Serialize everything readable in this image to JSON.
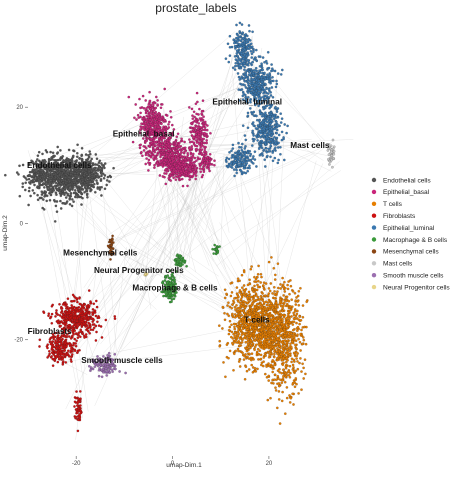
{
  "chart_data": {
    "type": "scatter",
    "title": "prostate_labels",
    "xlabel": "umap-Dim.1",
    "ylabel": "umap-Dim.2",
    "xlim": [
      -30,
      36
    ],
    "ylim": [
      -40,
      35
    ],
    "x_ticks": [
      -20,
      0,
      20
    ],
    "y_ticks": [
      -20,
      0,
      20
    ],
    "grid": false,
    "legend_position": "right",
    "series": [
      {
        "name": "Endothelial cells",
        "color": "#555555",
        "label": "Endothelial cells",
        "label_at": [
          -23.5,
          9.5
        ],
        "clusters": [
          {
            "cx": -22.5,
            "cy": 8,
            "rx": 6.5,
            "ry": 3.8,
            "n": 900
          },
          {
            "cx": -18,
            "cy": 8.5,
            "rx": 3.5,
            "ry": 2.5,
            "n": 250
          },
          {
            "cx": -27.5,
            "cy": 8.5,
            "rx": 1.8,
            "ry": 2,
            "n": 120
          }
        ]
      },
      {
        "name": "Epithelial_basal",
        "color": "#c9257a",
        "label": "Epithelial_basal",
        "label_at": [
          -6,
          15
        ],
        "clusters": [
          {
            "cx": -4,
            "cy": 17,
            "rx": 3,
            "ry": 4.5,
            "n": 350
          },
          {
            "cx": -1,
            "cy": 12,
            "rx": 4,
            "ry": 3.5,
            "n": 400
          },
          {
            "cx": 2,
            "cy": 9.5,
            "rx": 3.5,
            "ry": 2,
            "n": 250
          },
          {
            "cx": 5.5,
            "cy": 15,
            "rx": 2,
            "ry": 4.5,
            "n": 200
          },
          {
            "cx": 7,
            "cy": 10.5,
            "rx": 1.5,
            "ry": 1.5,
            "n": 60
          }
        ]
      },
      {
        "name": "T cells",
        "color": "#e67e00",
        "label": "T cells",
        "label_at": [
          17.5,
          -17
        ],
        "clusters": [
          {
            "cx": 16,
            "cy": -17,
            "rx": 4.5,
            "ry": 7,
            "n": 700
          },
          {
            "cx": 23,
            "cy": -19.5,
            "rx": 4,
            "ry": 9,
            "n": 650
          },
          {
            "cx": 19.5,
            "cy": -18,
            "rx": 3,
            "ry": 5,
            "n": 250
          }
        ]
      },
      {
        "name": "Fibroblasts",
        "color": "#cc1111",
        "label": "Fibroblasts",
        "label_at": [
          -25.5,
          -19
        ],
        "clusters": [
          {
            "cx": -20,
            "cy": -16.5,
            "rx": 4.5,
            "ry": 3,
            "n": 450
          },
          {
            "cx": -23,
            "cy": -21.5,
            "rx": 3,
            "ry": 2.5,
            "n": 200
          },
          {
            "cx": -19.5,
            "cy": -32,
            "rx": 0.8,
            "ry": 2.5,
            "n": 60
          }
        ]
      },
      {
        "name": "Epithelial_luminal",
        "color": "#3a78b0",
        "label": "Epithelial_luminal",
        "label_at": [
          15.5,
          20.5
        ],
        "clusters": [
          {
            "cx": 14.5,
            "cy": 30,
            "rx": 2.2,
            "ry": 3.5,
            "n": 200
          },
          {
            "cx": 17.5,
            "cy": 24,
            "rx": 3.2,
            "ry": 4,
            "n": 350
          },
          {
            "cx": 19.5,
            "cy": 16,
            "rx": 3.2,
            "ry": 4.5,
            "n": 350
          },
          {
            "cx": 14,
            "cy": 11,
            "rx": 2.5,
            "ry": 2.2,
            "n": 150
          }
        ]
      },
      {
        "name": "Macrophage & B cells",
        "color": "#3a9a3a",
        "label": "Macrophage & B cells",
        "label_at": [
          0.5,
          -11.5
        ],
        "clusters": [
          {
            "cx": -0.5,
            "cy": -11,
            "rx": 1.3,
            "ry": 2.3,
            "n": 150
          },
          {
            "cx": 1.5,
            "cy": -6.5,
            "rx": 1.2,
            "ry": 1,
            "n": 50
          },
          {
            "cx": 9.2,
            "cy": -4.5,
            "rx": 0.6,
            "ry": 0.8,
            "n": 25
          }
        ]
      },
      {
        "name": "Mesenchymal cells",
        "color": "#8b4513",
        "label": "Mesenchymal cells",
        "label_at": [
          -15,
          -5.5
        ],
        "clusters": [
          {
            "cx": -12.8,
            "cy": -4,
            "rx": 0.6,
            "ry": 1.8,
            "n": 40
          }
        ]
      },
      {
        "name": "Mast cells",
        "color": "#c8c8c8",
        "label": "Mast cells",
        "label_at": [
          28.5,
          13
        ],
        "clusters": [
          {
            "cx": 33,
            "cy": 12,
            "rx": 0.7,
            "ry": 2,
            "n": 40
          }
        ]
      },
      {
        "name": "Smooth muscle cells",
        "color": "#9b6fb0",
        "label": "Smooth muscle cells",
        "label_at": [
          -10.5,
          -24
        ],
        "clusters": [
          {
            "cx": -14,
            "cy": -24.5,
            "rx": 2.8,
            "ry": 1.8,
            "n": 120
          }
        ]
      },
      {
        "name": "Neural Progenitor cells",
        "color": "#e8d58a",
        "label": "Neural Progenitor cells",
        "label_at": [
          -7,
          -8.5
        ],
        "clusters": [
          {
            "cx": -5.5,
            "cy": -9,
            "rx": 0.5,
            "ry": 0.5,
            "n": 5
          }
        ]
      }
    ],
    "legend": [
      "Endothelial cells",
      "Epithelial_basal",
      "T cells",
      "Fibroblasts",
      "Epithelial_luminal",
      "Macrophage & B cells",
      "Mesenchymal cells",
      "Mast cells",
      "Smooth muscle cells",
      "Neural Progenitor cells"
    ]
  }
}
